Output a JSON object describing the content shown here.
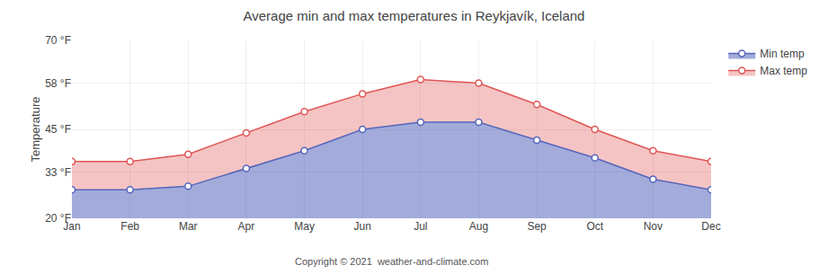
{
  "chart_data": {
    "type": "area",
    "title": "Average min and max temperatures in Reykjavík, Iceland",
    "subtitle": "Copyright © 2021  weather-and-climate.com",
    "y_label": "Temperature",
    "categories": [
      "Jan",
      "Feb",
      "Mar",
      "Apr",
      "May",
      "Jun",
      "Jul",
      "Aug",
      "Sep",
      "Oct",
      "Nov",
      "Dec"
    ],
    "series": [
      {
        "name": "Max temp",
        "color": "#e05555",
        "marker": "circle",
        "values": [
          36,
          36,
          38,
          44,
          50,
          55,
          59,
          58,
          52,
          45,
          39,
          36
        ]
      },
      {
        "name": "Min temp",
        "color": "#5566bb",
        "marker": "circle",
        "values": [
          28,
          28,
          29,
          34,
          39,
          45,
          47,
          47,
          42,
          37,
          31,
          28
        ]
      }
    ],
    "ylim": [
      20,
      70
    ],
    "yticks": [
      {
        "value": 20,
        "label": "20 °F"
      },
      {
        "value": 33,
        "label": "33 °F"
      },
      {
        "value": 45,
        "label": "45 °F"
      },
      {
        "value": 58,
        "label": "58 °F"
      },
      {
        "value": 70,
        "label": "70 °F"
      }
    ],
    "grid": true,
    "legend": "right"
  }
}
